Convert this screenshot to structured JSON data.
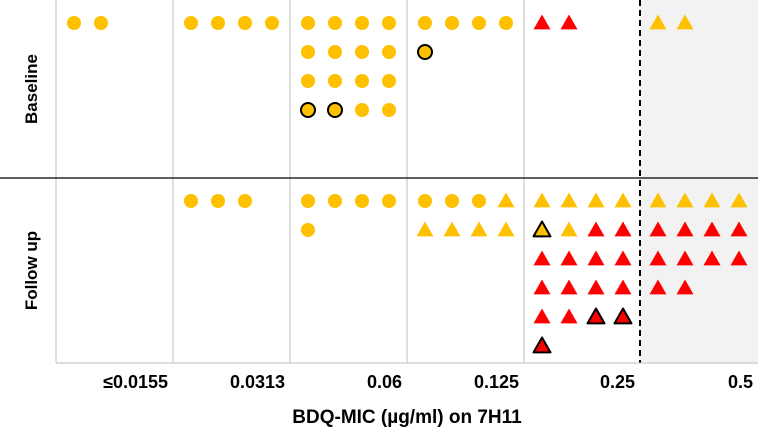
{
  "chart_data": {
    "type": "scatter",
    "title": "",
    "xlabel": "BDQ-MIC (µg/ml) on 7H11",
    "ylabel": "",
    "x_categories": [
      "≤0.0155",
      "0.0313",
      "0.06",
      "0.125",
      "0.25",
      "0.5"
    ],
    "rows": [
      "Baseline",
      "Follow up"
    ],
    "breakpoint_after_category": "0.25",
    "shaded_categories": [
      "0.5"
    ],
    "colors": {
      "yellow": "#ffc000",
      "red": "#ff0000",
      "outline": "#000000",
      "grid": "#bfbfbf",
      "shade": "#f2f2f2"
    },
    "groups": [
      {
        "row": "Baseline",
        "category": "≤0.0155",
        "markers": [
          {
            "shape": "circle",
            "color": "yellow",
            "outlined": false
          },
          {
            "shape": "circle",
            "color": "yellow",
            "outlined": false
          }
        ]
      },
      {
        "row": "Baseline",
        "category": "0.0313",
        "markers": [
          {
            "shape": "circle",
            "color": "yellow",
            "outlined": false
          },
          {
            "shape": "circle",
            "color": "yellow",
            "outlined": false
          },
          {
            "shape": "circle",
            "color": "yellow",
            "outlined": false
          },
          {
            "shape": "circle",
            "color": "yellow",
            "outlined": false
          }
        ]
      },
      {
        "row": "Baseline",
        "category": "0.06",
        "markers": [
          {
            "shape": "circle",
            "color": "yellow",
            "outlined": false
          },
          {
            "shape": "circle",
            "color": "yellow",
            "outlined": false
          },
          {
            "shape": "circle",
            "color": "yellow",
            "outlined": false
          },
          {
            "shape": "circle",
            "color": "yellow",
            "outlined": false
          },
          {
            "shape": "circle",
            "color": "yellow",
            "outlined": false
          },
          {
            "shape": "circle",
            "color": "yellow",
            "outlined": false
          },
          {
            "shape": "circle",
            "color": "yellow",
            "outlined": false
          },
          {
            "shape": "circle",
            "color": "yellow",
            "outlined": false
          },
          {
            "shape": "circle",
            "color": "yellow",
            "outlined": false
          },
          {
            "shape": "circle",
            "color": "yellow",
            "outlined": false
          },
          {
            "shape": "circle",
            "color": "yellow",
            "outlined": false
          },
          {
            "shape": "circle",
            "color": "yellow",
            "outlined": false
          },
          {
            "shape": "circle",
            "color": "yellow",
            "outlined": true
          },
          {
            "shape": "circle",
            "color": "yellow",
            "outlined": true
          },
          {
            "shape": "circle",
            "color": "yellow",
            "outlined": false
          },
          {
            "shape": "circle",
            "color": "yellow",
            "outlined": false
          }
        ]
      },
      {
        "row": "Baseline",
        "category": "0.125",
        "markers": [
          {
            "shape": "circle",
            "color": "yellow",
            "outlined": false
          },
          {
            "shape": "circle",
            "color": "yellow",
            "outlined": false
          },
          {
            "shape": "circle",
            "color": "yellow",
            "outlined": false
          },
          {
            "shape": "circle",
            "color": "yellow",
            "outlined": false
          },
          {
            "shape": "circle",
            "color": "yellow",
            "outlined": true
          }
        ]
      },
      {
        "row": "Baseline",
        "category": "0.25",
        "markers": [
          {
            "shape": "triangle",
            "color": "red",
            "outlined": false
          },
          {
            "shape": "triangle",
            "color": "red",
            "outlined": false
          }
        ]
      },
      {
        "row": "Baseline",
        "category": "0.5",
        "markers": [
          {
            "shape": "triangle",
            "color": "yellow",
            "outlined": false
          },
          {
            "shape": "triangle",
            "color": "yellow",
            "outlined": false
          }
        ]
      },
      {
        "row": "Follow up",
        "category": "0.0313",
        "markers": [
          {
            "shape": "circle",
            "color": "yellow",
            "outlined": false
          },
          {
            "shape": "circle",
            "color": "yellow",
            "outlined": false
          },
          {
            "shape": "circle",
            "color": "yellow",
            "outlined": false
          }
        ]
      },
      {
        "row": "Follow up",
        "category": "0.06",
        "markers": [
          {
            "shape": "circle",
            "color": "yellow",
            "outlined": false
          },
          {
            "shape": "circle",
            "color": "yellow",
            "outlined": false
          },
          {
            "shape": "circle",
            "color": "yellow",
            "outlined": false
          },
          {
            "shape": "circle",
            "color": "yellow",
            "outlined": false
          },
          {
            "shape": "circle",
            "color": "yellow",
            "outlined": false
          }
        ]
      },
      {
        "row": "Follow up",
        "category": "0.125",
        "markers": [
          {
            "shape": "circle",
            "color": "yellow",
            "outlined": false
          },
          {
            "shape": "circle",
            "color": "yellow",
            "outlined": false
          },
          {
            "shape": "circle",
            "color": "yellow",
            "outlined": false
          },
          {
            "shape": "triangle",
            "color": "yellow",
            "outlined": false
          },
          {
            "shape": "triangle",
            "color": "yellow",
            "outlined": false
          },
          {
            "shape": "triangle",
            "color": "yellow",
            "outlined": false
          },
          {
            "shape": "triangle",
            "color": "yellow",
            "outlined": false
          },
          {
            "shape": "triangle",
            "color": "yellow",
            "outlined": false
          }
        ]
      },
      {
        "row": "Follow up",
        "category": "0.25",
        "markers": [
          {
            "shape": "triangle",
            "color": "yellow",
            "outlined": false
          },
          {
            "shape": "triangle",
            "color": "yellow",
            "outlined": false
          },
          {
            "shape": "triangle",
            "color": "yellow",
            "outlined": false
          },
          {
            "shape": "triangle",
            "color": "yellow",
            "outlined": false
          },
          {
            "shape": "triangle",
            "color": "yellow",
            "outlined": true
          },
          {
            "shape": "triangle",
            "color": "yellow",
            "outlined": false
          },
          {
            "shape": "triangle",
            "color": "red",
            "outlined": false
          },
          {
            "shape": "triangle",
            "color": "red",
            "outlined": false
          },
          {
            "shape": "triangle",
            "color": "red",
            "outlined": false
          },
          {
            "shape": "triangle",
            "color": "red",
            "outlined": false
          },
          {
            "shape": "triangle",
            "color": "red",
            "outlined": false
          },
          {
            "shape": "triangle",
            "color": "red",
            "outlined": false
          },
          {
            "shape": "triangle",
            "color": "red",
            "outlined": false
          },
          {
            "shape": "triangle",
            "color": "red",
            "outlined": false
          },
          {
            "shape": "triangle",
            "color": "red",
            "outlined": false
          },
          {
            "shape": "triangle",
            "color": "red",
            "outlined": false
          },
          {
            "shape": "triangle",
            "color": "red",
            "outlined": false
          },
          {
            "shape": "triangle",
            "color": "red",
            "outlined": false
          },
          {
            "shape": "triangle",
            "color": "red",
            "outlined": true
          },
          {
            "shape": "triangle",
            "color": "red",
            "outlined": true
          },
          {
            "shape": "triangle",
            "color": "red",
            "outlined": true
          }
        ]
      },
      {
        "row": "Follow up",
        "category": "0.5",
        "markers": [
          {
            "shape": "triangle",
            "color": "yellow",
            "outlined": false
          },
          {
            "shape": "triangle",
            "color": "yellow",
            "outlined": false
          },
          {
            "shape": "triangle",
            "color": "yellow",
            "outlined": false
          },
          {
            "shape": "triangle",
            "color": "yellow",
            "outlined": false
          },
          {
            "shape": "triangle",
            "color": "red",
            "outlined": false
          },
          {
            "shape": "triangle",
            "color": "red",
            "outlined": false
          },
          {
            "shape": "triangle",
            "color": "red",
            "outlined": false
          },
          {
            "shape": "triangle",
            "color": "red",
            "outlined": false
          },
          {
            "shape": "triangle",
            "color": "red",
            "outlined": false
          },
          {
            "shape": "triangle",
            "color": "red",
            "outlined": false
          },
          {
            "shape": "triangle",
            "color": "red",
            "outlined": false
          },
          {
            "shape": "triangle",
            "color": "red",
            "outlined": false
          },
          {
            "shape": "triangle",
            "color": "red",
            "outlined": false
          },
          {
            "shape": "triangle",
            "color": "red",
            "outlined": false
          }
        ]
      }
    ]
  }
}
